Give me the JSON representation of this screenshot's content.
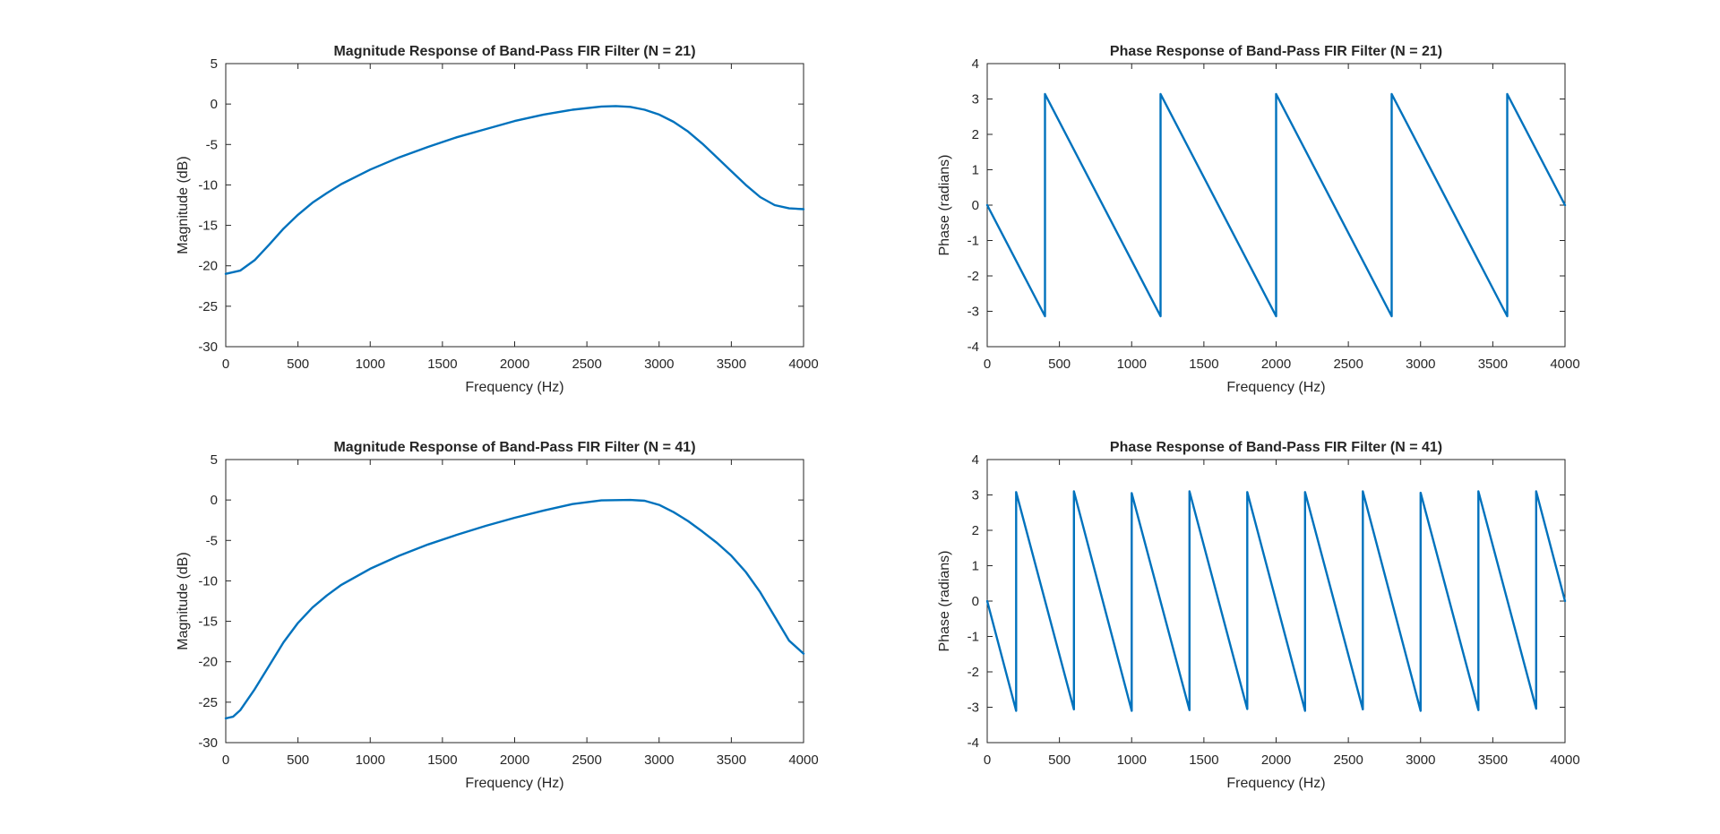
{
  "figure": {
    "background": "#ffffff",
    "axes_color": "#262626",
    "line_color": "#0072bd"
  },
  "chart_data": [
    {
      "type": "line",
      "title": "Magnitude Response of Band-Pass FIR Filter (N = 21)",
      "xlabel": "Frequency (Hz)",
      "ylabel": "Magnitude (dB)",
      "xlim": [
        0,
        4000
      ],
      "ylim": [
        -30,
        5
      ],
      "xticks": [
        0,
        500,
        1000,
        1500,
        2000,
        2500,
        3000,
        3500,
        4000
      ],
      "yticks": [
        -30,
        -25,
        -20,
        -15,
        -10,
        -5,
        0,
        5
      ],
      "grid": false,
      "series": [
        {
          "x": [
            0,
            100,
            200,
            300,
            400,
            500,
            600,
            700,
            800,
            900,
            1000,
            1200,
            1400,
            1600,
            1800,
            2000,
            2200,
            2400,
            2600,
            2700,
            2800,
            2900,
            3000,
            3100,
            3200,
            3300,
            3400,
            3500,
            3600,
            3700,
            3800,
            3900,
            4000
          ],
          "y": [
            -21,
            -20.6,
            -19.3,
            -17.4,
            -15.4,
            -13.7,
            -12.2,
            -11,
            -9.9,
            -9,
            -8.1,
            -6.6,
            -5.3,
            -4.1,
            -3.1,
            -2.1,
            -1.3,
            -0.7,
            -0.3,
            -0.25,
            -0.35,
            -0.7,
            -1.3,
            -2.2,
            -3.4,
            -4.9,
            -6.6,
            -8.3,
            -10,
            -11.5,
            -12.5,
            -12.9,
            -13
          ]
        }
      ]
    },
    {
      "type": "line",
      "title": "Phase Response of Band-Pass FIR Filter (N = 21)",
      "xlabel": "Frequency (Hz)",
      "ylabel": "Phase (radians)",
      "xlim": [
        0,
        4000
      ],
      "ylim": [
        -4,
        4
      ],
      "xticks": [
        0,
        500,
        1000,
        1500,
        2000,
        2500,
        3000,
        3500,
        4000
      ],
      "yticks": [
        -4,
        -3,
        -2,
        -1,
        0,
        1,
        2,
        3,
        4
      ],
      "grid": false,
      "series": [
        {
          "x": [
            0,
            400,
            400,
            1200,
            1200,
            2000,
            2000,
            2800,
            2800,
            3600,
            3600,
            4000
          ],
          "y": [
            0,
            -3.14,
            3.14,
            -3.14,
            3.14,
            -3.14,
            3.14,
            -3.14,
            3.14,
            -3.14,
            3.14,
            0
          ]
        }
      ]
    },
    {
      "type": "line",
      "title": "Magnitude Response of Band-Pass FIR Filter (N = 41)",
      "xlabel": "Frequency (Hz)",
      "ylabel": "Magnitude (dB)",
      "xlim": [
        0,
        4000
      ],
      "ylim": [
        -30,
        5
      ],
      "xticks": [
        0,
        500,
        1000,
        1500,
        2000,
        2500,
        3000,
        3500,
        4000
      ],
      "yticks": [
        -30,
        -25,
        -20,
        -15,
        -10,
        -5,
        0,
        5
      ],
      "grid": false,
      "series": [
        {
          "x": [
            0,
            50,
            100,
            200,
            300,
            400,
            500,
            600,
            700,
            800,
            1000,
            1200,
            1400,
            1600,
            1800,
            2000,
            2200,
            2400,
            2600,
            2800,
            2900,
            3000,
            3100,
            3200,
            3300,
            3400,
            3500,
            3600,
            3700,
            3800,
            3900,
            4000
          ],
          "y": [
            -27,
            -26.8,
            -26,
            -23.4,
            -20.5,
            -17.6,
            -15.2,
            -13.3,
            -11.8,
            -10.5,
            -8.5,
            -6.9,
            -5.5,
            -4.3,
            -3.2,
            -2.2,
            -1.3,
            -0.5,
            -0.05,
            0,
            -0.1,
            -0.6,
            -1.5,
            -2.6,
            -3.9,
            -5.3,
            -6.9,
            -8.9,
            -11.4,
            -14.4,
            -17.4,
            -19
          ]
        }
      ]
    },
    {
      "type": "line",
      "title": "Phase Response of Band-Pass FIR Filter (N = 41)",
      "xlabel": "Frequency (Hz)",
      "ylabel": "Phase (radians)",
      "xlim": [
        0,
        4000
      ],
      "ylim": [
        -4,
        4
      ],
      "xticks": [
        0,
        500,
        1000,
        1500,
        2000,
        2500,
        3000,
        3500,
        4000
      ],
      "yticks": [
        -4,
        -3,
        -2,
        -1,
        0,
        1,
        2,
        3,
        4
      ],
      "grid": false,
      "series": [
        {
          "x": [
            0,
            200,
            200,
            600,
            600,
            1000,
            1000,
            1400,
            1400,
            1800,
            1800,
            2200,
            2200,
            2600,
            2600,
            3000,
            3000,
            3400,
            3400,
            3800,
            3800,
            4000
          ],
          "y": [
            0,
            -3.1,
            3.08,
            -3.06,
            3.1,
            -3.1,
            3.05,
            -3.08,
            3.1,
            -3.05,
            3.08,
            -3.1,
            3.08,
            -3.06,
            3.1,
            -3.1,
            3.06,
            -3.08,
            3.1,
            -3.04,
            3.1,
            0
          ]
        }
      ]
    }
  ]
}
